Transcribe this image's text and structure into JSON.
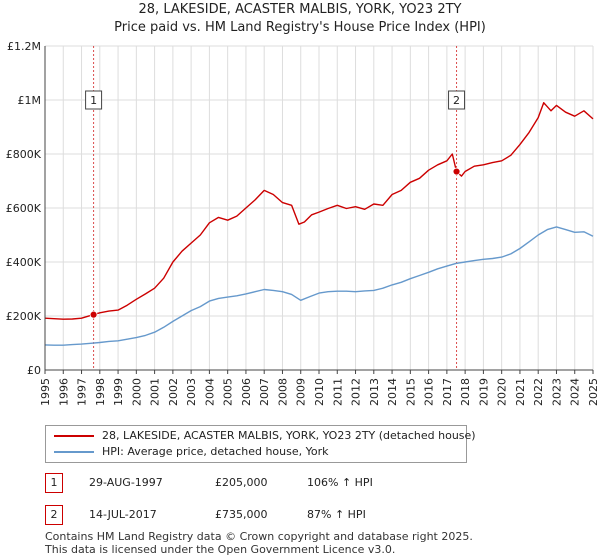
{
  "header": {
    "title_line1": "28, LAKESIDE, ACASTER MALBIS, YORK, YO23 2TY",
    "title_line2": "Price paid vs. HM Land Registry's House Price Index (HPI)"
  },
  "colors": {
    "property": "#cc0000",
    "hpi": "#6699cc",
    "grid": "#dddddd",
    "marker": "#cc0000"
  },
  "chart_data": {
    "type": "line",
    "title": "28, LAKESIDE, ACASTER MALBIS, YORK, YO23 2TY",
    "subtitle": "Price paid vs. HM Land Registry's House Price Index (HPI)",
    "xlim": [
      1995,
      2025
    ],
    "ylim": [
      0,
      1200000
    ],
    "xticks": [
      "1995",
      "1996",
      "1997",
      "1998",
      "1999",
      "2000",
      "2001",
      "2002",
      "2003",
      "2004",
      "2005",
      "2006",
      "2007",
      "2008",
      "2009",
      "2010",
      "2011",
      "2012",
      "2013",
      "2014",
      "2015",
      "2016",
      "2017",
      "2018",
      "2019",
      "2020",
      "2021",
      "2022",
      "2023",
      "2024",
      "2025"
    ],
    "yticks": [
      {
        "value": 0,
        "label": "£0"
      },
      {
        "value": 200000,
        "label": "£200K"
      },
      {
        "value": 400000,
        "label": "£400K"
      },
      {
        "value": 600000,
        "label": "£600K"
      },
      {
        "value": 800000,
        "label": "£800K"
      },
      {
        "value": 1000000,
        "label": "£1M"
      },
      {
        "value": 1200000,
        "label": "£1.2M"
      }
    ],
    "grid": true,
    "series": [
      {
        "name": "28, LAKESIDE, ACASTER MALBIS, YORK, YO23 2TY (detached house)",
        "color": "#cc0000",
        "x": [
          1995.0,
          1995.5,
          1996.0,
          1996.5,
          1997.0,
          1997.66,
          1998.0,
          1998.5,
          1999.0,
          1999.5,
          2000.0,
          2000.5,
          2001.0,
          2001.5,
          2002.0,
          2002.5,
          2003.0,
          2003.5,
          2004.0,
          2004.5,
          2005.0,
          2005.5,
          2006.0,
          2006.5,
          2007.0,
          2007.5,
          2008.0,
          2008.5,
          2008.9,
          2009.2,
          2009.6,
          2010.0,
          2010.5,
          2011.0,
          2011.5,
          2012.0,
          2012.5,
          2013.0,
          2013.5,
          2014.0,
          2014.5,
          2015.0,
          2015.5,
          2016.0,
          2016.5,
          2017.0,
          2017.3,
          2017.53,
          2017.8,
          2018.0,
          2018.5,
          2019.0,
          2019.5,
          2020.0,
          2020.5,
          2021.0,
          2021.5,
          2022.0,
          2022.3,
          2022.7,
          2023.0,
          2023.5,
          2024.0,
          2024.5,
          2025.0
        ],
        "y": [
          192000,
          190000,
          188000,
          189000,
          192000,
          205000,
          212000,
          218000,
          222000,
          240000,
          262000,
          282000,
          303000,
          340000,
          400000,
          440000,
          470000,
          500000,
          545000,
          565000,
          555000,
          570000,
          600000,
          630000,
          665000,
          650000,
          620000,
          610000,
          540000,
          548000,
          575000,
          585000,
          598000,
          610000,
          598000,
          605000,
          595000,
          615000,
          610000,
          650000,
          665000,
          695000,
          710000,
          740000,
          760000,
          775000,
          800000,
          735000,
          718000,
          735000,
          755000,
          760000,
          768000,
          775000,
          795000,
          835000,
          880000,
          935000,
          990000,
          960000,
          980000,
          955000,
          940000,
          960000,
          930000
        ]
      },
      {
        "name": "HPI: Average price, detached house, York",
        "color": "#6699cc",
        "x": [
          1995.0,
          1995.5,
          1996.0,
          1996.5,
          1997.0,
          1997.5,
          1998.0,
          1998.5,
          1999.0,
          1999.5,
          2000.0,
          2000.5,
          2001.0,
          2001.5,
          2002.0,
          2002.5,
          2003.0,
          2003.5,
          2004.0,
          2004.5,
          2005.0,
          2005.5,
          2006.0,
          2006.5,
          2007.0,
          2007.5,
          2008.0,
          2008.5,
          2009.0,
          2009.5,
          2010.0,
          2010.5,
          2011.0,
          2011.5,
          2012.0,
          2012.5,
          2013.0,
          2013.5,
          2014.0,
          2014.5,
          2015.0,
          2015.5,
          2016.0,
          2016.5,
          2017.0,
          2017.5,
          2018.0,
          2018.5,
          2019.0,
          2019.5,
          2020.0,
          2020.5,
          2021.0,
          2021.5,
          2022.0,
          2022.5,
          2023.0,
          2023.5,
          2024.0,
          2024.5,
          2025.0
        ],
        "y": [
          93000,
          92000,
          92000,
          94000,
          96000,
          99000,
          102000,
          106000,
          108000,
          114000,
          120000,
          128000,
          140000,
          158000,
          180000,
          200000,
          220000,
          235000,
          255000,
          265000,
          270000,
          275000,
          282000,
          290000,
          298000,
          295000,
          290000,
          280000,
          258000,
          272000,
          285000,
          290000,
          292000,
          292000,
          290000,
          293000,
          295000,
          303000,
          315000,
          325000,
          338000,
          350000,
          362000,
          375000,
          385000,
          395000,
          400000,
          405000,
          410000,
          413000,
          418000,
          430000,
          450000,
          475000,
          500000,
          520000,
          530000,
          520000,
          510000,
          512000,
          495000
        ]
      }
    ],
    "annotations": [
      {
        "label": "1",
        "x": 1997.66,
        "y": 205000
      },
      {
        "label": "2",
        "x": 2017.53,
        "y": 735000
      }
    ]
  },
  "legend": {
    "property_label": "28, LAKESIDE, ACASTER MALBIS, YORK, YO23 2TY (detached house)",
    "hpi_label": "HPI: Average price, detached house, York"
  },
  "transactions": [
    {
      "num": "1",
      "date": "29-AUG-1997",
      "price": "£205,000",
      "hpi": "106% ↑ HPI"
    },
    {
      "num": "2",
      "date": "14-JUL-2017",
      "price": "£735,000",
      "hpi": "87% ↑ HPI"
    }
  ],
  "footer": {
    "line1": "Contains HM Land Registry data © Crown copyright and database right 2025.",
    "line2": "This data is licensed under the Open Government Licence v3.0."
  }
}
